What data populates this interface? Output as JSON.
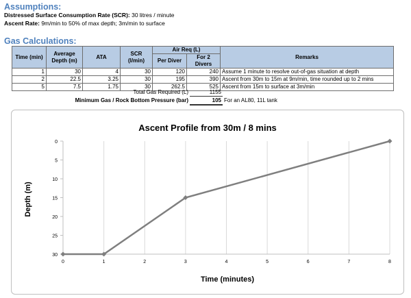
{
  "assumptions": {
    "heading": "Assumptions:",
    "scr_label": "Distressed Surface Consumption Rate (SCR):",
    "scr_value": " 30 litres / minute",
    "ascent_label": "Ascent Rate:",
    "ascent_value": " 9m/min to 50% of max depth; 3m/min to surface"
  },
  "gas": {
    "heading": "Gas Calculations:",
    "headers": {
      "time": "Time (min)",
      "avg_depth": "Average Depth (m)",
      "ata": "ATA",
      "scr": "SCR (l/min)",
      "air_req": "Air Req (L)",
      "per_diver": "Per Diver",
      "two_divers": "For 2 Divers",
      "remarks": "Remarks"
    },
    "rows": [
      {
        "time": "1",
        "depth": "30",
        "ata": "4",
        "scr": "30",
        "per": "120",
        "two": "240",
        "remark": "Assume 1 minute to resolve out-of-gas situation at depth"
      },
      {
        "time": "2",
        "depth": "22.5",
        "ata": "3.25",
        "scr": "30",
        "per": "195",
        "two": "390",
        "remark": "Ascent from 30m to 15m at 9m/min, time rounded up to 2 mins"
      },
      {
        "time": "5",
        "depth": "7.5",
        "ata": "1.75",
        "scr": "30",
        "per": "262.5",
        "two": "525",
        "remark": "Ascent from 15m to surface at 3m/min"
      }
    ],
    "total_label": "Total Gas Required (L)",
    "total_value": "1155",
    "min_label": "Minimum Gas / Rock Bottom Pressure (bar)",
    "min_value": "105",
    "min_note": "For an AL80, 11L tank"
  },
  "chart_data": {
    "type": "line",
    "title": "Ascent Profile from 30m / 8 mins",
    "xlabel": "Time (minutes)",
    "ylabel": "Depth (m)",
    "xlim": [
      0,
      8
    ],
    "ylim": [
      0,
      30
    ],
    "y_inverted": true,
    "x_ticks": [
      0,
      1,
      2,
      3,
      4,
      5,
      6,
      7,
      8
    ],
    "y_ticks": [
      0,
      5,
      10,
      15,
      20,
      25,
      30
    ],
    "grid": "vertical",
    "series": [
      {
        "x": [
          0,
          1,
          3,
          8
        ],
        "y": [
          30,
          30,
          15,
          0
        ],
        "color": "#7f7f7f"
      }
    ]
  }
}
